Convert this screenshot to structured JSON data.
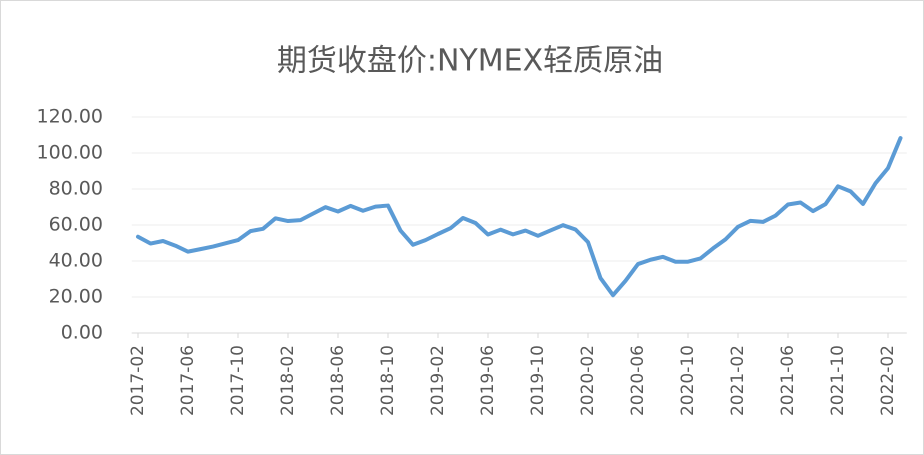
{
  "chart_data": {
    "type": "line",
    "title": "期货收盘价:NYMEX轻质原油",
    "categories": [
      "2017-02",
      null,
      null,
      null,
      "2017-06",
      null,
      null,
      null,
      "2017-10",
      null,
      null,
      null,
      "2018-02",
      null,
      null,
      null,
      "2018-06",
      null,
      null,
      null,
      "2018-10",
      null,
      null,
      null,
      "2019-02",
      null,
      null,
      null,
      "2019-06",
      null,
      null,
      null,
      "2019-10",
      null,
      null,
      null,
      "2020-02",
      null,
      null,
      null,
      "2020-06",
      null,
      null,
      null,
      "2020-10",
      null,
      null,
      null,
      "2021-02",
      null,
      null,
      null,
      "2021-06",
      null,
      null,
      null,
      "2021-10",
      null,
      null,
      null,
      "2022-02",
      null
    ],
    "series": [
      {
        "name": "期货收盘价:NYMEX轻质原油",
        "color": "#5b9bd5",
        "values": [
          53.5,
          49.7,
          51.1,
          48.5,
          45.2,
          46.6,
          48.0,
          49.8,
          51.6,
          56.6,
          57.9,
          63.7,
          62.2,
          62.7,
          66.3,
          69.9,
          67.5,
          70.6,
          67.9,
          70.2,
          70.8,
          56.9,
          49.0,
          51.6,
          55.0,
          58.2,
          63.9,
          61.1,
          54.7,
          57.4,
          54.8,
          56.9,
          54.0,
          57.0,
          59.9,
          57.5,
          50.5,
          30.5,
          21.0,
          29.0,
          38.3,
          40.7,
          42.3,
          39.6,
          39.6,
          41.4,
          47.0,
          52.0,
          59.0,
          62.3,
          61.7,
          65.2,
          71.4,
          72.5,
          67.7,
          71.6,
          81.5,
          78.7,
          71.7,
          83.2,
          91.6,
          108.3
        ]
      }
    ],
    "ylim": [
      0,
      120
    ],
    "yticks": [
      {
        "value": 0,
        "label": "0.00"
      },
      {
        "value": 20,
        "label": "20.00"
      },
      {
        "value": 40,
        "label": "40.00"
      },
      {
        "value": 60,
        "label": "60.00"
      },
      {
        "value": 80,
        "label": "80.00"
      },
      {
        "value": 100,
        "label": "100.00"
      },
      {
        "value": 120,
        "label": "120.00"
      }
    ],
    "grid": true
  }
}
